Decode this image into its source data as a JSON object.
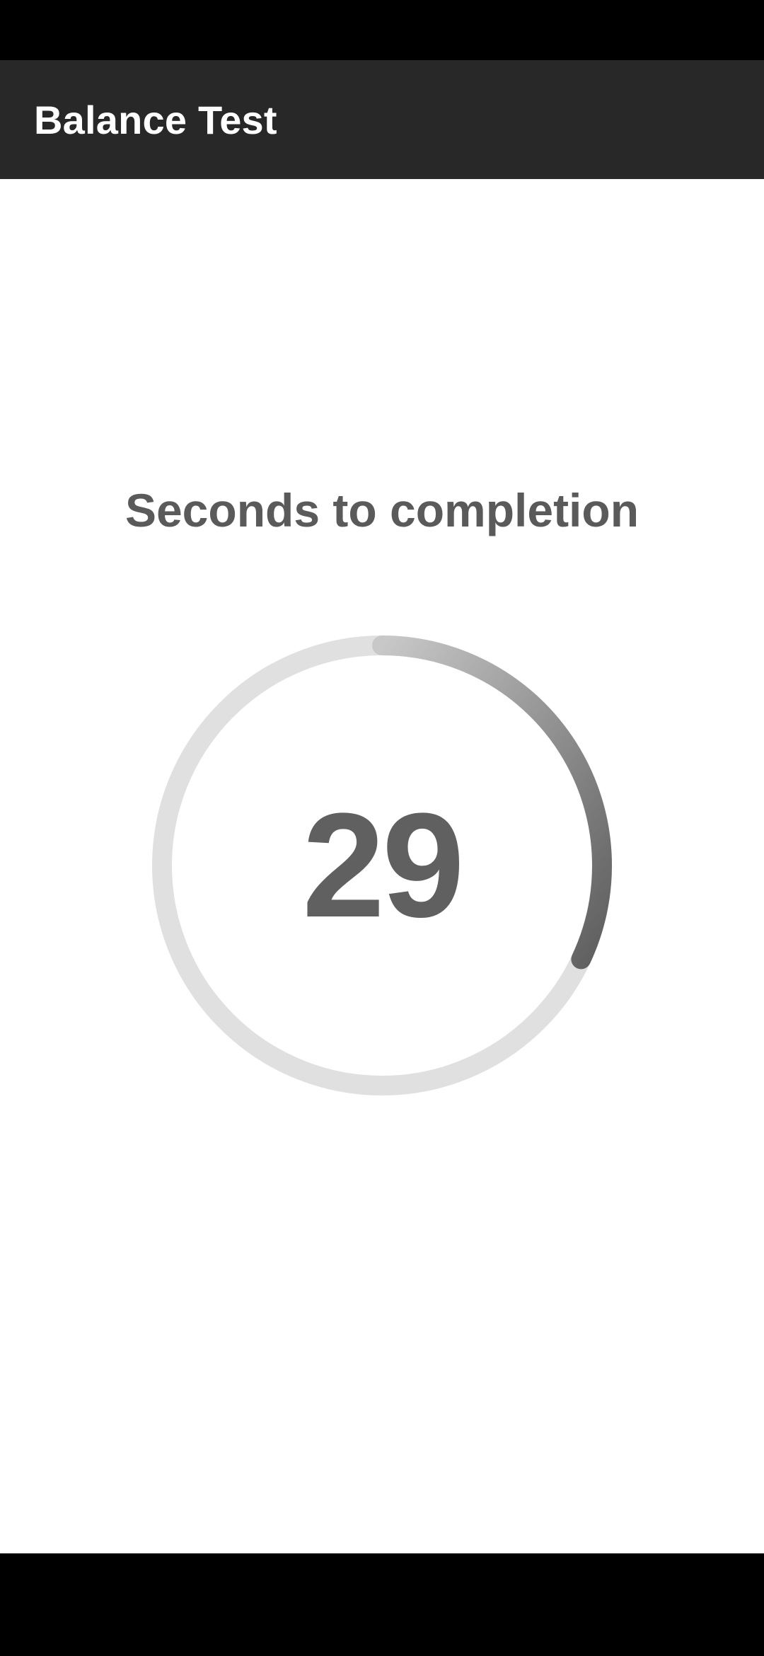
{
  "app_bar": {
    "title": "Balance Test"
  },
  "main": {
    "heading": "Seconds to completion",
    "countdown": {
      "value": "29",
      "progress_fraction": 0.32,
      "track_color": "#e0e0e0",
      "progress_color": "#646464"
    }
  },
  "colors": {
    "app_bar": "#282828",
    "system_bars": "#000000",
    "background": "#ffffff",
    "text": "#5a5a5a"
  }
}
